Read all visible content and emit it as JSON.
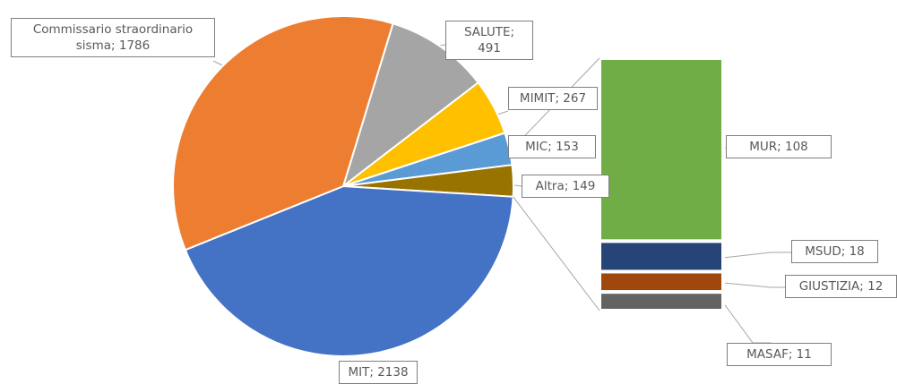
{
  "chart_data": {
    "type": "pie-of-bar",
    "label_separator": "; ",
    "pie": {
      "categories": [
        "SALUTE",
        "MIMIT",
        "MIC",
        "Altra",
        "MIT",
        "Commissario straordinario sisma"
      ],
      "values": [
        491,
        267,
        153,
        149,
        2138,
        1786
      ],
      "colors": [
        "#a5a5a5",
        "#ffc000",
        "#5b9bd5",
        "#997300",
        "#4472c4",
        "#ed7d31"
      ]
    },
    "bar": {
      "categories": [
        "MUR",
        "MSUD",
        "GIUSTIZIA",
        "MASAF"
      ],
      "values": [
        108,
        18,
        12,
        11
      ],
      "colors": [
        "#70ad47",
        "#264478",
        "#9e480e",
        "#636363"
      ]
    }
  }
}
